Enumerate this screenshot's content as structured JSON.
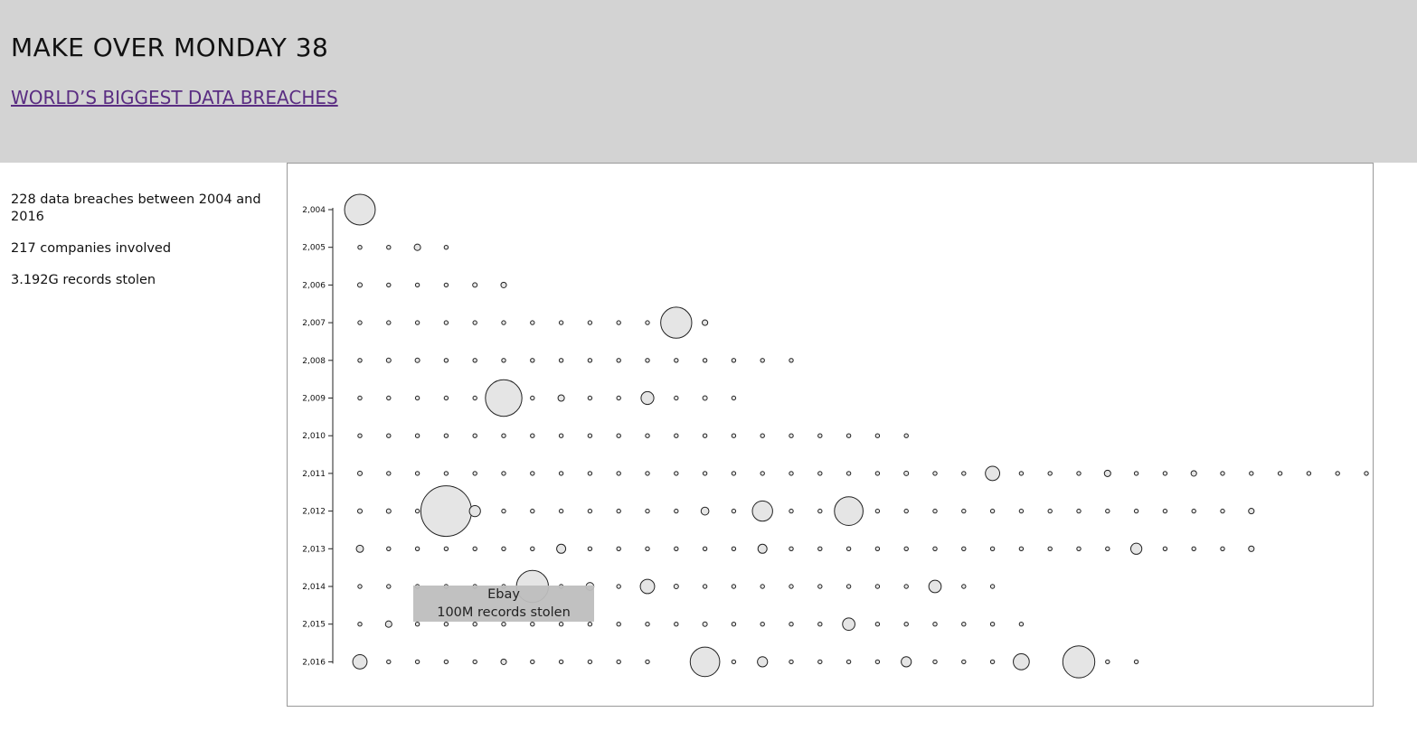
{
  "header": {
    "title": "MAKE OVER MONDAY 38",
    "subtitle_link": "WORLD’S BIGGEST DATA BREACHES"
  },
  "stats": {
    "breaches": "228 data breaches between 2004 and 2016",
    "companies": "217 companies involved",
    "records": "3.192G records stolen"
  },
  "tooltip": {
    "company": "Ebay",
    "records": "100M records stolen"
  },
  "chart_data": {
    "type": "scatter",
    "title": "",
    "xlabel": "",
    "ylabel": "",
    "y_tick_labels": [
      "2,004",
      "2,005",
      "2,006",
      "2,007",
      "2,008",
      "2,009",
      "2,010",
      "2,011",
      "2,012",
      "2,013",
      "2,014",
      "2,015",
      "2,016"
    ],
    "years": [
      2004,
      2005,
      2006,
      2007,
      2008,
      2009,
      2010,
      2011,
      2012,
      2013,
      2014,
      2015,
      2016
    ],
    "records_stolen_millions_by_year": [
      [
        92
      ],
      [
        1,
        1,
        4,
        1
      ],
      [
        2,
        1,
        0.5,
        1,
        2,
        3
      ],
      [
        1,
        1,
        1.5,
        1,
        1,
        1,
        1,
        1,
        1,
        1,
        0.5,
        94,
        3
      ],
      [
        1,
        2,
        2,
        1,
        1,
        1.5,
        1,
        1,
        1,
        1,
        1,
        1,
        1,
        1,
        1,
        1
      ],
      [
        1,
        1,
        1,
        1,
        1,
        130,
        1,
        4,
        1,
        1,
        16,
        1,
        2,
        1
      ],
      [
        1,
        1,
        1,
        1,
        1,
        1,
        1,
        1,
        1,
        1,
        1,
        1,
        1,
        1,
        1,
        1,
        1,
        1,
        1,
        1
      ],
      [
        2,
        1,
        1,
        1.5,
        1,
        1,
        1,
        1,
        1,
        1,
        1,
        1,
        1.5,
        1,
        1,
        1,
        1,
        1,
        1,
        2,
        1,
        1,
        20,
        1,
        1,
        1,
        4,
        1,
        1,
        3,
        1,
        1,
        1,
        1,
        1,
        1
      ],
      [
        2,
        2,
        1,
        250,
        12,
        1,
        1,
        1,
        1,
        1.5,
        1,
        1,
        6,
        1,
        40,
        1,
        1,
        80,
        1,
        1,
        1,
        1,
        1,
        1,
        1,
        1,
        1,
        1,
        1,
        1,
        1,
        3
      ],
      [
        5,
        1,
        1,
        1,
        1,
        1,
        1,
        8,
        1,
        1,
        1,
        1,
        1,
        1,
        8,
        1,
        1,
        1,
        1,
        1,
        1,
        1,
        1,
        1,
        1,
        1,
        1,
        12,
        1,
        1,
        1,
        3
      ],
      [
        1,
        1,
        1,
        1,
        1,
        1,
        100,
        1,
        6,
        1,
        20,
        2,
        1,
        1,
        1,
        1,
        1,
        1.5,
        1,
        1,
        15,
        1,
        1
      ],
      [
        1,
        4,
        1,
        1,
        1,
        1,
        1,
        1.5,
        1,
        1,
        1,
        1,
        2,
        1,
        1.5,
        1,
        1,
        15,
        1,
        1,
        1,
        1,
        1.5,
        1
      ],
      [
        20,
        1,
        1,
        1,
        1,
        3,
        1,
        1,
        1,
        1,
        1,
        0,
        85,
        1,
        10,
        1,
        1,
        1,
        1,
        10,
        1,
        1,
        1,
        25,
        0,
        100,
        1,
        1
      ]
    ],
    "highlighted": {
      "company": "Ebay",
      "year": 2014,
      "records_millions": 100
    }
  }
}
